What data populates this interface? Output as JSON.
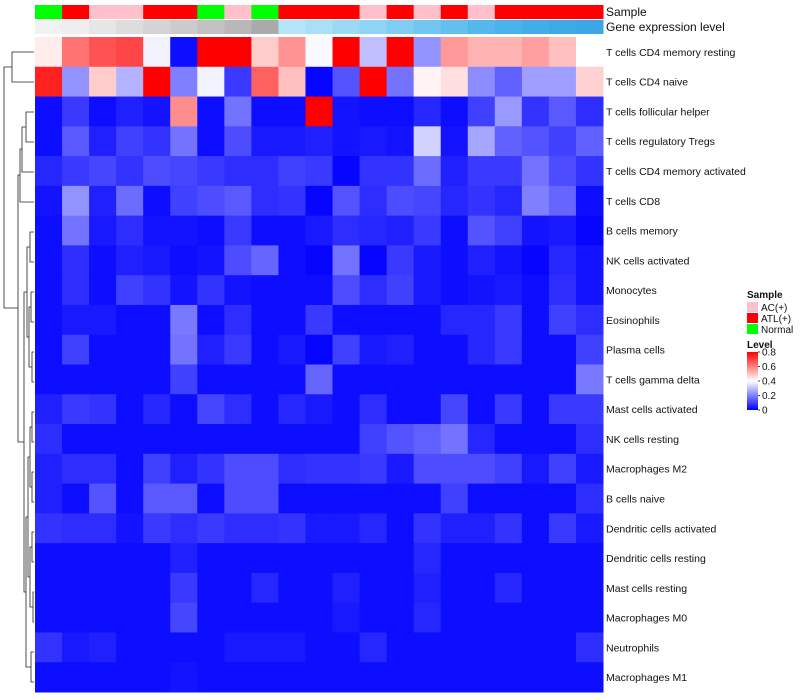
{
  "chart_data": {
    "type": "heatmap",
    "title": "",
    "annotation_labels": [
      "Sample",
      "Gene expression level"
    ],
    "sample_groups": [
      "Normal",
      "ATL(+)",
      "AC(+)",
      "AC(+)",
      "ATL(+)",
      "ATL(+)",
      "Normal",
      "AC(+)",
      "Normal",
      "ATL(+)",
      "ATL(+)",
      "ATL(+)",
      "AC(+)",
      "ATL(+)",
      "AC(+)",
      "ATL(+)",
      "AC(+)",
      "ATL(+)",
      "ATL(+)",
      "ATL(+)",
      "ATL(+)"
    ],
    "sample_legend": {
      "title": "Sample",
      "entries": [
        {
          "label": "AC(+)",
          "color": "#FFC0CB"
        },
        {
          "label": "ATL(+)",
          "color": "#FF0000"
        },
        {
          "label": "Normal",
          "color": "#00FF00"
        }
      ]
    },
    "expression_level_colors": [
      "#f2f2f2",
      "#eeeeee",
      "#e6e6e6",
      "#dddddd",
      "#d4d4d4",
      "#cbcbcb",
      "#c2c2c2",
      "#b8b8b8",
      "#aaaaaa",
      "#b4e5f8",
      "#a8e0f7",
      "#9bdaf5",
      "#8ed4f4",
      "#7fcdf2",
      "#70c6f0",
      "#62bfee",
      "#55b8ec",
      "#4ab2ea",
      "#42aee9",
      "#3ea9e7",
      "#3aa6e5"
    ],
    "level_legend": {
      "title": "Level",
      "ticks": [
        0.8,
        0.6,
        0.4,
        0.2,
        0
      ],
      "range": [
        0,
        0.8
      ],
      "colors": [
        "#0000FF",
        "#FFFFFF",
        "#FF0000"
      ]
    },
    "rows": [
      "T cells CD4 memory resting",
      "T cells CD4 naive",
      "T cells follicular helper",
      "T cells regulatory  Tregs",
      "T cells CD4 memory activated",
      "T cells CD8",
      "B cells memory",
      "NK cells activated",
      "Monocytes",
      "Eosinophils",
      "Plasma cells",
      "T cells gamma delta",
      "Mast cells activated",
      "NK cells resting",
      "Macrophages M2",
      "B cells naive",
      "Dendritic cells activated",
      "Dendritic cells resting",
      "Mast cells resting",
      "Macrophages M0",
      "Neutrophils",
      "Macrophages M1"
    ],
    "values": [
      [
        0.43,
        0.62,
        0.67,
        0.69,
        0.38,
        0.02,
        0.8,
        0.8,
        0.48,
        0.57,
        0.39,
        0.8,
        0.3,
        0.8,
        0.23,
        0.56,
        0.52,
        0.52,
        0.55,
        0.5,
        0.4
      ],
      [
        0.75,
        0.23,
        0.48,
        0.28,
        0.8,
        0.2,
        0.38,
        0.09,
        0.65,
        0.5,
        0.01,
        0.13,
        0.8,
        0.18,
        0.42,
        0.45,
        0.22,
        0.15,
        0.25,
        0.25,
        0.47
      ],
      [
        0.02,
        0.09,
        0.02,
        0.05,
        0.03,
        0.58,
        0.02,
        0.18,
        0.02,
        0.02,
        0.8,
        0.03,
        0.02,
        0.02,
        0.06,
        0.02,
        0.1,
        0.24,
        0.08,
        0.14,
        0.07
      ],
      [
        0.02,
        0.14,
        0.05,
        0.1,
        0.08,
        0.18,
        0.02,
        0.12,
        0.04,
        0.04,
        0.05,
        0.03,
        0.04,
        0.03,
        0.33,
        0.03,
        0.26,
        0.15,
        0.13,
        0.1,
        0.15
      ],
      [
        0.06,
        0.09,
        0.11,
        0.08,
        0.12,
        0.11,
        0.09,
        0.07,
        0.07,
        0.1,
        0.09,
        0.01,
        0.08,
        0.08,
        0.17,
        0.05,
        0.09,
        0.09,
        0.18,
        0.12,
        0.08
      ],
      [
        0.03,
        0.23,
        0.05,
        0.17,
        0.02,
        0.1,
        0.12,
        0.14,
        0.07,
        0.08,
        0.01,
        0.13,
        0.07,
        0.12,
        0.11,
        0.06,
        0.08,
        0.06,
        0.2,
        0.16,
        0.02
      ],
      [
        0.02,
        0.18,
        0.04,
        0.07,
        0.03,
        0.03,
        0.02,
        0.09,
        0.02,
        0.02,
        0.04,
        0.07,
        0.06,
        0.05,
        0.09,
        0.02,
        0.13,
        0.1,
        0.03,
        0.04,
        0.01
      ],
      [
        0.02,
        0.07,
        0.02,
        0.05,
        0.04,
        0.02,
        0.03,
        0.12,
        0.16,
        0.02,
        0.01,
        0.18,
        0.01,
        0.09,
        0.04,
        0.02,
        0.05,
        0.03,
        0.01,
        0.06,
        0.03
      ],
      [
        0.02,
        0.07,
        0.02,
        0.1,
        0.08,
        0.03,
        0.08,
        0.03,
        0.02,
        0.02,
        0.02,
        0.12,
        0.07,
        0.1,
        0.04,
        0.02,
        0.03,
        0.04,
        0.02,
        0.07,
        0.03
      ],
      [
        0.02,
        0.04,
        0.04,
        0.02,
        0.02,
        0.19,
        0.02,
        0.07,
        0.02,
        0.02,
        0.09,
        0.02,
        0.02,
        0.02,
        0.02,
        0.06,
        0.06,
        0.09,
        0.02,
        0.1,
        0.07
      ],
      [
        0.02,
        0.1,
        0.02,
        0.02,
        0.02,
        0.18,
        0.05,
        0.09,
        0.02,
        0.04,
        0.01,
        0.1,
        0.04,
        0.05,
        0.02,
        0.02,
        0.06,
        0.09,
        0.02,
        0.02,
        0.1
      ],
      [
        0.02,
        0.02,
        0.02,
        0.02,
        0.02,
        0.1,
        0.02,
        0.02,
        0.02,
        0.02,
        0.16,
        0.02,
        0.02,
        0.02,
        0.02,
        0.02,
        0.02,
        0.02,
        0.02,
        0.02,
        0.19
      ],
      [
        0.05,
        0.09,
        0.08,
        0.02,
        0.06,
        0.02,
        0.11,
        0.07,
        0.02,
        0.06,
        0.04,
        0.02,
        0.07,
        0.02,
        0.02,
        0.11,
        0.02,
        0.09,
        0.02,
        0.09,
        0.09
      ],
      [
        0.07,
        0.02,
        0.02,
        0.02,
        0.02,
        0.02,
        0.02,
        0.02,
        0.02,
        0.02,
        0.02,
        0.02,
        0.1,
        0.13,
        0.15,
        0.18,
        0.06,
        0.02,
        0.02,
        0.02,
        0.07
      ],
      [
        0.05,
        0.07,
        0.07,
        0.02,
        0.1,
        0.05,
        0.08,
        0.12,
        0.12,
        0.07,
        0.08,
        0.08,
        0.09,
        0.04,
        0.12,
        0.12,
        0.12,
        0.1,
        0.04,
        0.1,
        0.04
      ],
      [
        0.05,
        0.02,
        0.13,
        0.02,
        0.14,
        0.14,
        0.02,
        0.12,
        0.12,
        0.02,
        0.02,
        0.02,
        0.02,
        0.02,
        0.02,
        0.1,
        0.02,
        0.02,
        0.02,
        0.02,
        0.07
      ],
      [
        0.08,
        0.07,
        0.07,
        0.03,
        0.09,
        0.07,
        0.09,
        0.07,
        0.07,
        0.08,
        0.04,
        0.04,
        0.06,
        0.02,
        0.08,
        0.05,
        0.05,
        0.08,
        0.02,
        0.09,
        0.04
      ],
      [
        0.02,
        0.02,
        0.02,
        0.02,
        0.02,
        0.05,
        0.02,
        0.02,
        0.02,
        0.02,
        0.02,
        0.02,
        0.02,
        0.02,
        0.06,
        0.02,
        0.02,
        0.02,
        0.02,
        0.02,
        0.02
      ],
      [
        0.02,
        0.02,
        0.02,
        0.02,
        0.02,
        0.09,
        0.02,
        0.02,
        0.06,
        0.02,
        0.02,
        0.05,
        0.02,
        0.02,
        0.05,
        0.02,
        0.02,
        0.06,
        0.02,
        0.02,
        0.02
      ],
      [
        0.02,
        0.02,
        0.02,
        0.02,
        0.02,
        0.11,
        0.02,
        0.02,
        0.02,
        0.02,
        0.02,
        0.04,
        0.02,
        0.02,
        0.06,
        0.02,
        0.02,
        0.02,
        0.02,
        0.02,
        0.02
      ],
      [
        0.08,
        0.04,
        0.05,
        0.02,
        0.02,
        0.02,
        0.02,
        0.04,
        0.04,
        0.04,
        0.02,
        0.02,
        0.06,
        0.02,
        0.02,
        0.02,
        0.02,
        0.02,
        0.02,
        0.02,
        0.07
      ],
      [
        0.02,
        0.02,
        0.02,
        0.02,
        0.02,
        0.03,
        0.02,
        0.02,
        0.02,
        0.02,
        0.02,
        0.02,
        0.02,
        0.02,
        0.02,
        0.02,
        0.02,
        0.02,
        0.02,
        0.02,
        0.02
      ]
    ]
  }
}
